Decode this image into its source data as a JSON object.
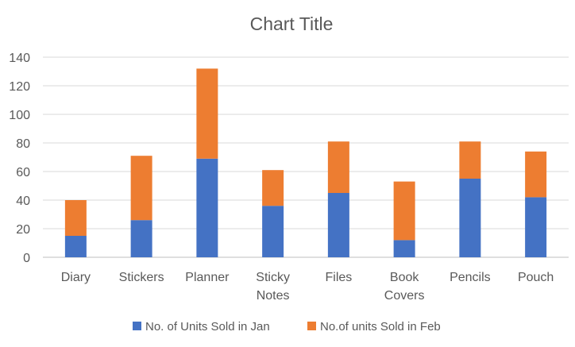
{
  "chart_data": {
    "type": "bar",
    "stacked": true,
    "title": "Chart Title",
    "categories": [
      "Diary",
      "Stickers",
      "Planner",
      "Sticky Notes",
      "Files",
      "Book Covers",
      "Pencils",
      "Pouch"
    ],
    "category_lines": [
      [
        "Diary"
      ],
      [
        "Stickers"
      ],
      [
        "Planner"
      ],
      [
        "Sticky",
        "Notes"
      ],
      [
        "Files"
      ],
      [
        "Book",
        "Covers"
      ],
      [
        "Pencils"
      ],
      [
        "Pouch"
      ]
    ],
    "series": [
      {
        "name": "No. of Units Sold in Jan",
        "color": "#4472C4",
        "values": [
          15,
          26,
          69,
          36,
          45,
          12,
          55,
          42
        ]
      },
      {
        "name": "No.of units Sold in Feb",
        "color": "#ED7D31",
        "values": [
          25,
          45,
          63,
          25,
          36,
          41,
          26,
          32
        ]
      }
    ],
    "ylim": [
      0,
      140
    ],
    "yticks": [
      0,
      20,
      40,
      60,
      80,
      100,
      120,
      140
    ],
    "grid": true,
    "legend_position": "bottom"
  }
}
